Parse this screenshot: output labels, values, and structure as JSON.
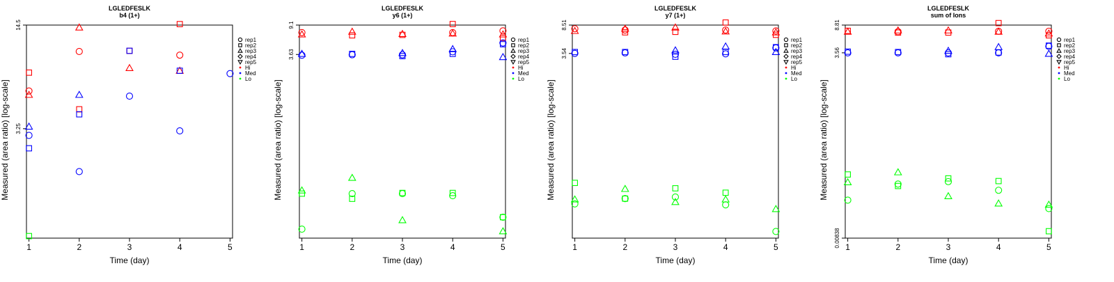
{
  "figure": {
    "layout": "1x4 small multiples"
  },
  "legend": {
    "position": "right-top",
    "shapes": [
      {
        "label": "rep1",
        "symbol": "circle"
      },
      {
        "label": "rep2",
        "symbol": "square"
      },
      {
        "label": "rep3",
        "symbol": "triangle"
      },
      {
        "label": "rep4",
        "symbol": "diamond"
      },
      {
        "label": "rep5",
        "symbol": "triangle-down"
      }
    ],
    "colors": [
      {
        "label": "Hi",
        "color": "#ff0000"
      },
      {
        "label": "Med",
        "color": "#0000ff"
      },
      {
        "label": "Lo",
        "color": "#00ff00"
      }
    ]
  },
  "chart_data": [
    {
      "type": "scatter",
      "title": "LGLEDFESLK",
      "subtitle": "b4 (1+)",
      "xlabel": "Time (day)",
      "ylabel": "Measured (area ratio) [log-scale]",
      "x_ticks": [
        1,
        2,
        3,
        4,
        5
      ],
      "xlim": [
        0.95,
        5.05
      ],
      "y_scale": "log",
      "y_ticks": [
        "14.5",
        "3.25"
      ],
      "y_tick_values": [
        14.5,
        3.25
      ],
      "ylim": [
        0.67,
        14.5
      ],
      "grid": false,
      "series": [
        {
          "level": "Hi",
          "color": "#ff0000",
          "points": [
            {
              "x": 1,
              "y": 7.3,
              "rep": "rep2"
            },
            {
              "x": 1,
              "y": 5.6,
              "rep": "rep1"
            },
            {
              "x": 1,
              "y": 5.3,
              "rep": "rep3"
            },
            {
              "x": 2,
              "y": 14.0,
              "rep": "rep3"
            },
            {
              "x": 2,
              "y": 9.9,
              "rep": "rep1"
            },
            {
              "x": 2,
              "y": 4.3,
              "rep": "rep2"
            },
            {
              "x": 3,
              "y": 10.0,
              "rep": "rep2"
            },
            {
              "x": 3,
              "y": 7.8,
              "rep": "rep3"
            },
            {
              "x": 4,
              "y": 14.7,
              "rep": "rep2"
            },
            {
              "x": 4,
              "y": 9.4,
              "rep": "rep1"
            },
            {
              "x": 4,
              "y": 7.5,
              "rep": "rep3"
            }
          ]
        },
        {
          "level": "Med",
          "color": "#0000ff",
          "points": [
            {
              "x": 1,
              "y": 3.35,
              "rep": "rep3"
            },
            {
              "x": 1,
              "y": 2.95,
              "rep": "rep1"
            },
            {
              "x": 1,
              "y": 2.45,
              "rep": "rep2"
            },
            {
              "x": 2,
              "y": 5.3,
              "rep": "rep3"
            },
            {
              "x": 2,
              "y": 4.0,
              "rep": "rep2"
            },
            {
              "x": 2,
              "y": 1.75,
              "rep": "rep1"
            },
            {
              "x": 3,
              "y": 10.0,
              "rep": "rep2"
            },
            {
              "x": 3,
              "y": 5.2,
              "rep": "rep1"
            },
            {
              "x": 4,
              "y": 7.5,
              "rep": "rep2"
            },
            {
              "x": 4,
              "y": 3.15,
              "rep": "rep1"
            },
            {
              "x": 5,
              "y": 7.2,
              "rep": "rep1"
            }
          ]
        },
        {
          "level": "Lo",
          "color": "#00ff00",
          "points": [
            {
              "x": 1,
              "y": 0.69,
              "rep": "rep2"
            }
          ]
        }
      ]
    },
    {
      "type": "scatter",
      "title": "LGLEDFESLK",
      "subtitle": "y6 (1+)",
      "xlabel": "Time (day)",
      "ylabel": "Measured (area ratio) [log-scale]",
      "x_ticks": [
        1,
        2,
        3,
        4,
        5
      ],
      "xlim": [
        0.95,
        5.05
      ],
      "y_scale": "log",
      "y_ticks": [
        "9.1",
        "3.63"
      ],
      "y_tick_values": [
        9.1,
        3.63
      ],
      "ylim": [
        0.0117,
        9.1
      ],
      "grid": false,
      "series": [
        {
          "level": "Hi",
          "color": "#ff0000",
          "points": [
            {
              "x": 1,
              "y": 7.2,
              "rep": "rep1"
            },
            {
              "x": 1,
              "y": 6.8,
              "rep": "rep3"
            },
            {
              "x": 2,
              "y": 7.4,
              "rep": "rep3"
            },
            {
              "x": 2,
              "y": 6.6,
              "rep": "rep2"
            },
            {
              "x": 3,
              "y": 6.9,
              "rep": "rep3"
            },
            {
              "x": 3,
              "y": 6.7,
              "rep": "rep2"
            },
            {
              "x": 4,
              "y": 9.4,
              "rep": "rep2"
            },
            {
              "x": 4,
              "y": 7.2,
              "rep": "rep1"
            },
            {
              "x": 4,
              "y": 7.0,
              "rep": "rep3"
            },
            {
              "x": 5,
              "y": 7.6,
              "rep": "rep1"
            },
            {
              "x": 5,
              "y": 6.8,
              "rep": "rep3"
            },
            {
              "x": 5,
              "y": 6.1,
              "rep": "rep2"
            }
          ]
        },
        {
          "level": "Med",
          "color": "#0000ff",
          "points": [
            {
              "x": 1,
              "y": 3.7,
              "rep": "rep3"
            },
            {
              "x": 1,
              "y": 3.55,
              "rep": "rep1"
            },
            {
              "x": 2,
              "y": 3.7,
              "rep": "rep2"
            },
            {
              "x": 2,
              "y": 3.6,
              "rep": "rep1"
            },
            {
              "x": 3,
              "y": 3.8,
              "rep": "rep3"
            },
            {
              "x": 3,
              "y": 3.6,
              "rep": "rep1"
            },
            {
              "x": 3,
              "y": 3.45,
              "rep": "rep2"
            },
            {
              "x": 4,
              "y": 4.3,
              "rep": "rep3"
            },
            {
              "x": 4,
              "y": 3.95,
              "rep": "rep1"
            },
            {
              "x": 4,
              "y": 3.7,
              "rep": "rep2"
            },
            {
              "x": 5,
              "y": 5.2,
              "rep": "rep1"
            },
            {
              "x": 5,
              "y": 5.0,
              "rep": "rep2"
            },
            {
              "x": 5,
              "y": 3.35,
              "rep": "rep3"
            }
          ]
        },
        {
          "level": "Lo",
          "color": "#00ff00",
          "points": [
            {
              "x": 1,
              "y": 0.052,
              "rep": "rep3"
            },
            {
              "x": 1,
              "y": 0.047,
              "rep": "rep2"
            },
            {
              "x": 1,
              "y": 0.0155,
              "rep": "rep1"
            },
            {
              "x": 2,
              "y": 0.077,
              "rep": "rep3"
            },
            {
              "x": 2,
              "y": 0.047,
              "rep": "rep1"
            },
            {
              "x": 2,
              "y": 0.04,
              "rep": "rep2"
            },
            {
              "x": 3,
              "y": 0.048,
              "rep": "rep2"
            },
            {
              "x": 3,
              "y": 0.047,
              "rep": "rep1"
            },
            {
              "x": 3,
              "y": 0.0205,
              "rep": "rep3"
            },
            {
              "x": 4,
              "y": 0.048,
              "rep": "rep2"
            },
            {
              "x": 4,
              "y": 0.044,
              "rep": "rep1"
            },
            {
              "x": 5,
              "y": 0.0225,
              "rep": "rep2"
            },
            {
              "x": 5,
              "y": 0.0225,
              "rep": "rep1"
            },
            {
              "x": 5,
              "y": 0.0145,
              "rep": "rep3"
            }
          ]
        }
      ]
    },
    {
      "type": "scatter",
      "title": "LGLEDFESLK",
      "subtitle": "y7 (1+)",
      "xlabel": "Time (day)",
      "ylabel": "Measured (area ratio) [log-scale]",
      "x_ticks": [
        1,
        2,
        3,
        4,
        5
      ],
      "xlim": [
        0.95,
        5.05
      ],
      "y_scale": "log",
      "y_ticks": [
        "8.51",
        "3.54"
      ],
      "y_tick_values": [
        8.51,
        3.54
      ],
      "ylim": [
        0.0118,
        8.51
      ],
      "grid": false,
      "series": [
        {
          "level": "Hi",
          "color": "#ff0000",
          "points": [
            {
              "x": 1,
              "y": 7.6,
              "rep": "rep1"
            },
            {
              "x": 1,
              "y": 7.1,
              "rep": "rep3"
            },
            {
              "x": 2,
              "y": 7.6,
              "rep": "rep3"
            },
            {
              "x": 2,
              "y": 7.3,
              "rep": "rep1"
            },
            {
              "x": 2,
              "y": 6.8,
              "rep": "rep2"
            },
            {
              "x": 3,
              "y": 7.9,
              "rep": "rep3"
            },
            {
              "x": 3,
              "y": 6.9,
              "rep": "rep2"
            },
            {
              "x": 4,
              "y": 9.2,
              "rep": "rep2"
            },
            {
              "x": 4,
              "y": 7.3,
              "rep": "rep1"
            },
            {
              "x": 4,
              "y": 7.0,
              "rep": "rep3"
            },
            {
              "x": 5,
              "y": 7.1,
              "rep": "rep1"
            },
            {
              "x": 5,
              "y": 6.8,
              "rep": "rep3"
            },
            {
              "x": 5,
              "y": 6.3,
              "rep": "rep2"
            }
          ]
        },
        {
          "level": "Med",
          "color": "#0000ff",
          "points": [
            {
              "x": 1,
              "y": 3.7,
              "rep": "rep2"
            },
            {
              "x": 1,
              "y": 3.55,
              "rep": "rep1"
            },
            {
              "x": 2,
              "y": 3.7,
              "rep": "rep2"
            },
            {
              "x": 2,
              "y": 3.6,
              "rep": "rep1"
            },
            {
              "x": 3,
              "y": 3.9,
              "rep": "rep3"
            },
            {
              "x": 3,
              "y": 3.45,
              "rep": "rep1"
            },
            {
              "x": 3,
              "y": 3.2,
              "rep": "rep2"
            },
            {
              "x": 4,
              "y": 4.4,
              "rep": "rep3"
            },
            {
              "x": 4,
              "y": 3.7,
              "rep": "rep2"
            },
            {
              "x": 4,
              "y": 3.5,
              "rep": "rep1"
            },
            {
              "x": 5,
              "y": 4.3,
              "rep": "rep2"
            },
            {
              "x": 5,
              "y": 4.2,
              "rep": "rep1"
            },
            {
              "x": 5,
              "y": 3.7,
              "rep": "rep3"
            }
          ]
        },
        {
          "level": "Lo",
          "color": "#00ff00",
          "points": [
            {
              "x": 1,
              "y": 0.065,
              "rep": "rep2"
            },
            {
              "x": 1,
              "y": 0.039,
              "rep": "rep3"
            },
            {
              "x": 1,
              "y": 0.034,
              "rep": "rep1"
            },
            {
              "x": 2,
              "y": 0.04,
              "rep": "rep2"
            },
            {
              "x": 2,
              "y": 0.04,
              "rep": "rep1"
            },
            {
              "x": 2,
              "y": 0.054,
              "rep": "rep3"
            },
            {
              "x": 3,
              "y": 0.055,
              "rep": "rep2"
            },
            {
              "x": 3,
              "y": 0.042,
              "rep": "rep1"
            },
            {
              "x": 3,
              "y": 0.036,
              "rep": "rep3"
            },
            {
              "x": 4,
              "y": 0.048,
              "rep": "rep2"
            },
            {
              "x": 4,
              "y": 0.039,
              "rep": "rep3"
            },
            {
              "x": 4,
              "y": 0.033,
              "rep": "rep1"
            },
            {
              "x": 5,
              "y": 0.029,
              "rep": "rep3"
            },
            {
              "x": 5,
              "y": 0.0145,
              "rep": "rep1"
            }
          ]
        }
      ]
    },
    {
      "type": "scatter",
      "title": "LGLEDFESLK",
      "subtitle": "sum of Ions",
      "xlabel": "Time (day)",
      "ylabel": "Measured (area ratio) [log-scale]",
      "x_ticks": [
        1,
        2,
        3,
        4,
        5
      ],
      "xlim": [
        0.95,
        5.05
      ],
      "y_scale": "log",
      "y_ticks": [
        "8.81",
        "3.56",
        "0.00838"
      ],
      "y_tick_values": [
        8.81,
        3.56,
        0.00838
      ],
      "ylim": [
        0.00838,
        8.81
      ],
      "grid": false,
      "series": [
        {
          "level": "Hi",
          "color": "#ff0000",
          "points": [
            {
              "x": 1,
              "y": 7.3,
              "rep": "rep2"
            },
            {
              "x": 1,
              "y": 7.1,
              "rep": "rep3"
            },
            {
              "x": 2,
              "y": 7.4,
              "rep": "rep3"
            },
            {
              "x": 2,
              "y": 7.1,
              "rep": "rep1"
            },
            {
              "x": 2,
              "y": 6.9,
              "rep": "rep2"
            },
            {
              "x": 3,
              "y": 7.4,
              "rep": "rep3"
            },
            {
              "x": 3,
              "y": 6.9,
              "rep": "rep2"
            },
            {
              "x": 4,
              "y": 9.4,
              "rep": "rep2"
            },
            {
              "x": 4,
              "y": 7.2,
              "rep": "rep1"
            },
            {
              "x": 4,
              "y": 7.1,
              "rep": "rep3"
            },
            {
              "x": 5,
              "y": 7.2,
              "rep": "rep1"
            },
            {
              "x": 5,
              "y": 6.7,
              "rep": "rep3"
            },
            {
              "x": 5,
              "y": 6.3,
              "rep": "rep2"
            }
          ]
        },
        {
          "level": "Med",
          "color": "#0000ff",
          "points": [
            {
              "x": 1,
              "y": 3.7,
              "rep": "rep2"
            },
            {
              "x": 1,
              "y": 3.55,
              "rep": "rep1"
            },
            {
              "x": 2,
              "y": 3.65,
              "rep": "rep2"
            },
            {
              "x": 2,
              "y": 3.55,
              "rep": "rep1"
            },
            {
              "x": 3,
              "y": 3.8,
              "rep": "rep3"
            },
            {
              "x": 3,
              "y": 3.55,
              "rep": "rep1"
            },
            {
              "x": 3,
              "y": 3.4,
              "rep": "rep2"
            },
            {
              "x": 4,
              "y": 4.3,
              "rep": "rep3"
            },
            {
              "x": 4,
              "y": 3.6,
              "rep": "rep2"
            },
            {
              "x": 4,
              "y": 3.55,
              "rep": "rep1"
            },
            {
              "x": 5,
              "y": 4.5,
              "rep": "rep2"
            },
            {
              "x": 5,
              "y": 4.4,
              "rep": "rep1"
            },
            {
              "x": 5,
              "y": 3.45,
              "rep": "rep3"
            }
          ]
        },
        {
          "level": "Lo",
          "color": "#00ff00",
          "points": [
            {
              "x": 1,
              "y": 0.067,
              "rep": "rep2"
            },
            {
              "x": 1,
              "y": 0.052,
              "rep": "rep3"
            },
            {
              "x": 1,
              "y": 0.029,
              "rep": "rep1"
            },
            {
              "x": 2,
              "y": 0.072,
              "rep": "rep3"
            },
            {
              "x": 2,
              "y": 0.049,
              "rep": "rep1"
            },
            {
              "x": 2,
              "y": 0.046,
              "rep": "rep2"
            },
            {
              "x": 3,
              "y": 0.059,
              "rep": "rep2"
            },
            {
              "x": 3,
              "y": 0.053,
              "rep": "rep1"
            },
            {
              "x": 3,
              "y": 0.033,
              "rep": "rep3"
            },
            {
              "x": 4,
              "y": 0.054,
              "rep": "rep2"
            },
            {
              "x": 4,
              "y": 0.04,
              "rep": "rep1"
            },
            {
              "x": 4,
              "y": 0.026,
              "rep": "rep3"
            },
            {
              "x": 5,
              "y": 0.025,
              "rep": "rep3"
            },
            {
              "x": 5,
              "y": 0.022,
              "rep": "rep1"
            },
            {
              "x": 5,
              "y": 0.0105,
              "rep": "rep2"
            }
          ]
        }
      ]
    }
  ]
}
